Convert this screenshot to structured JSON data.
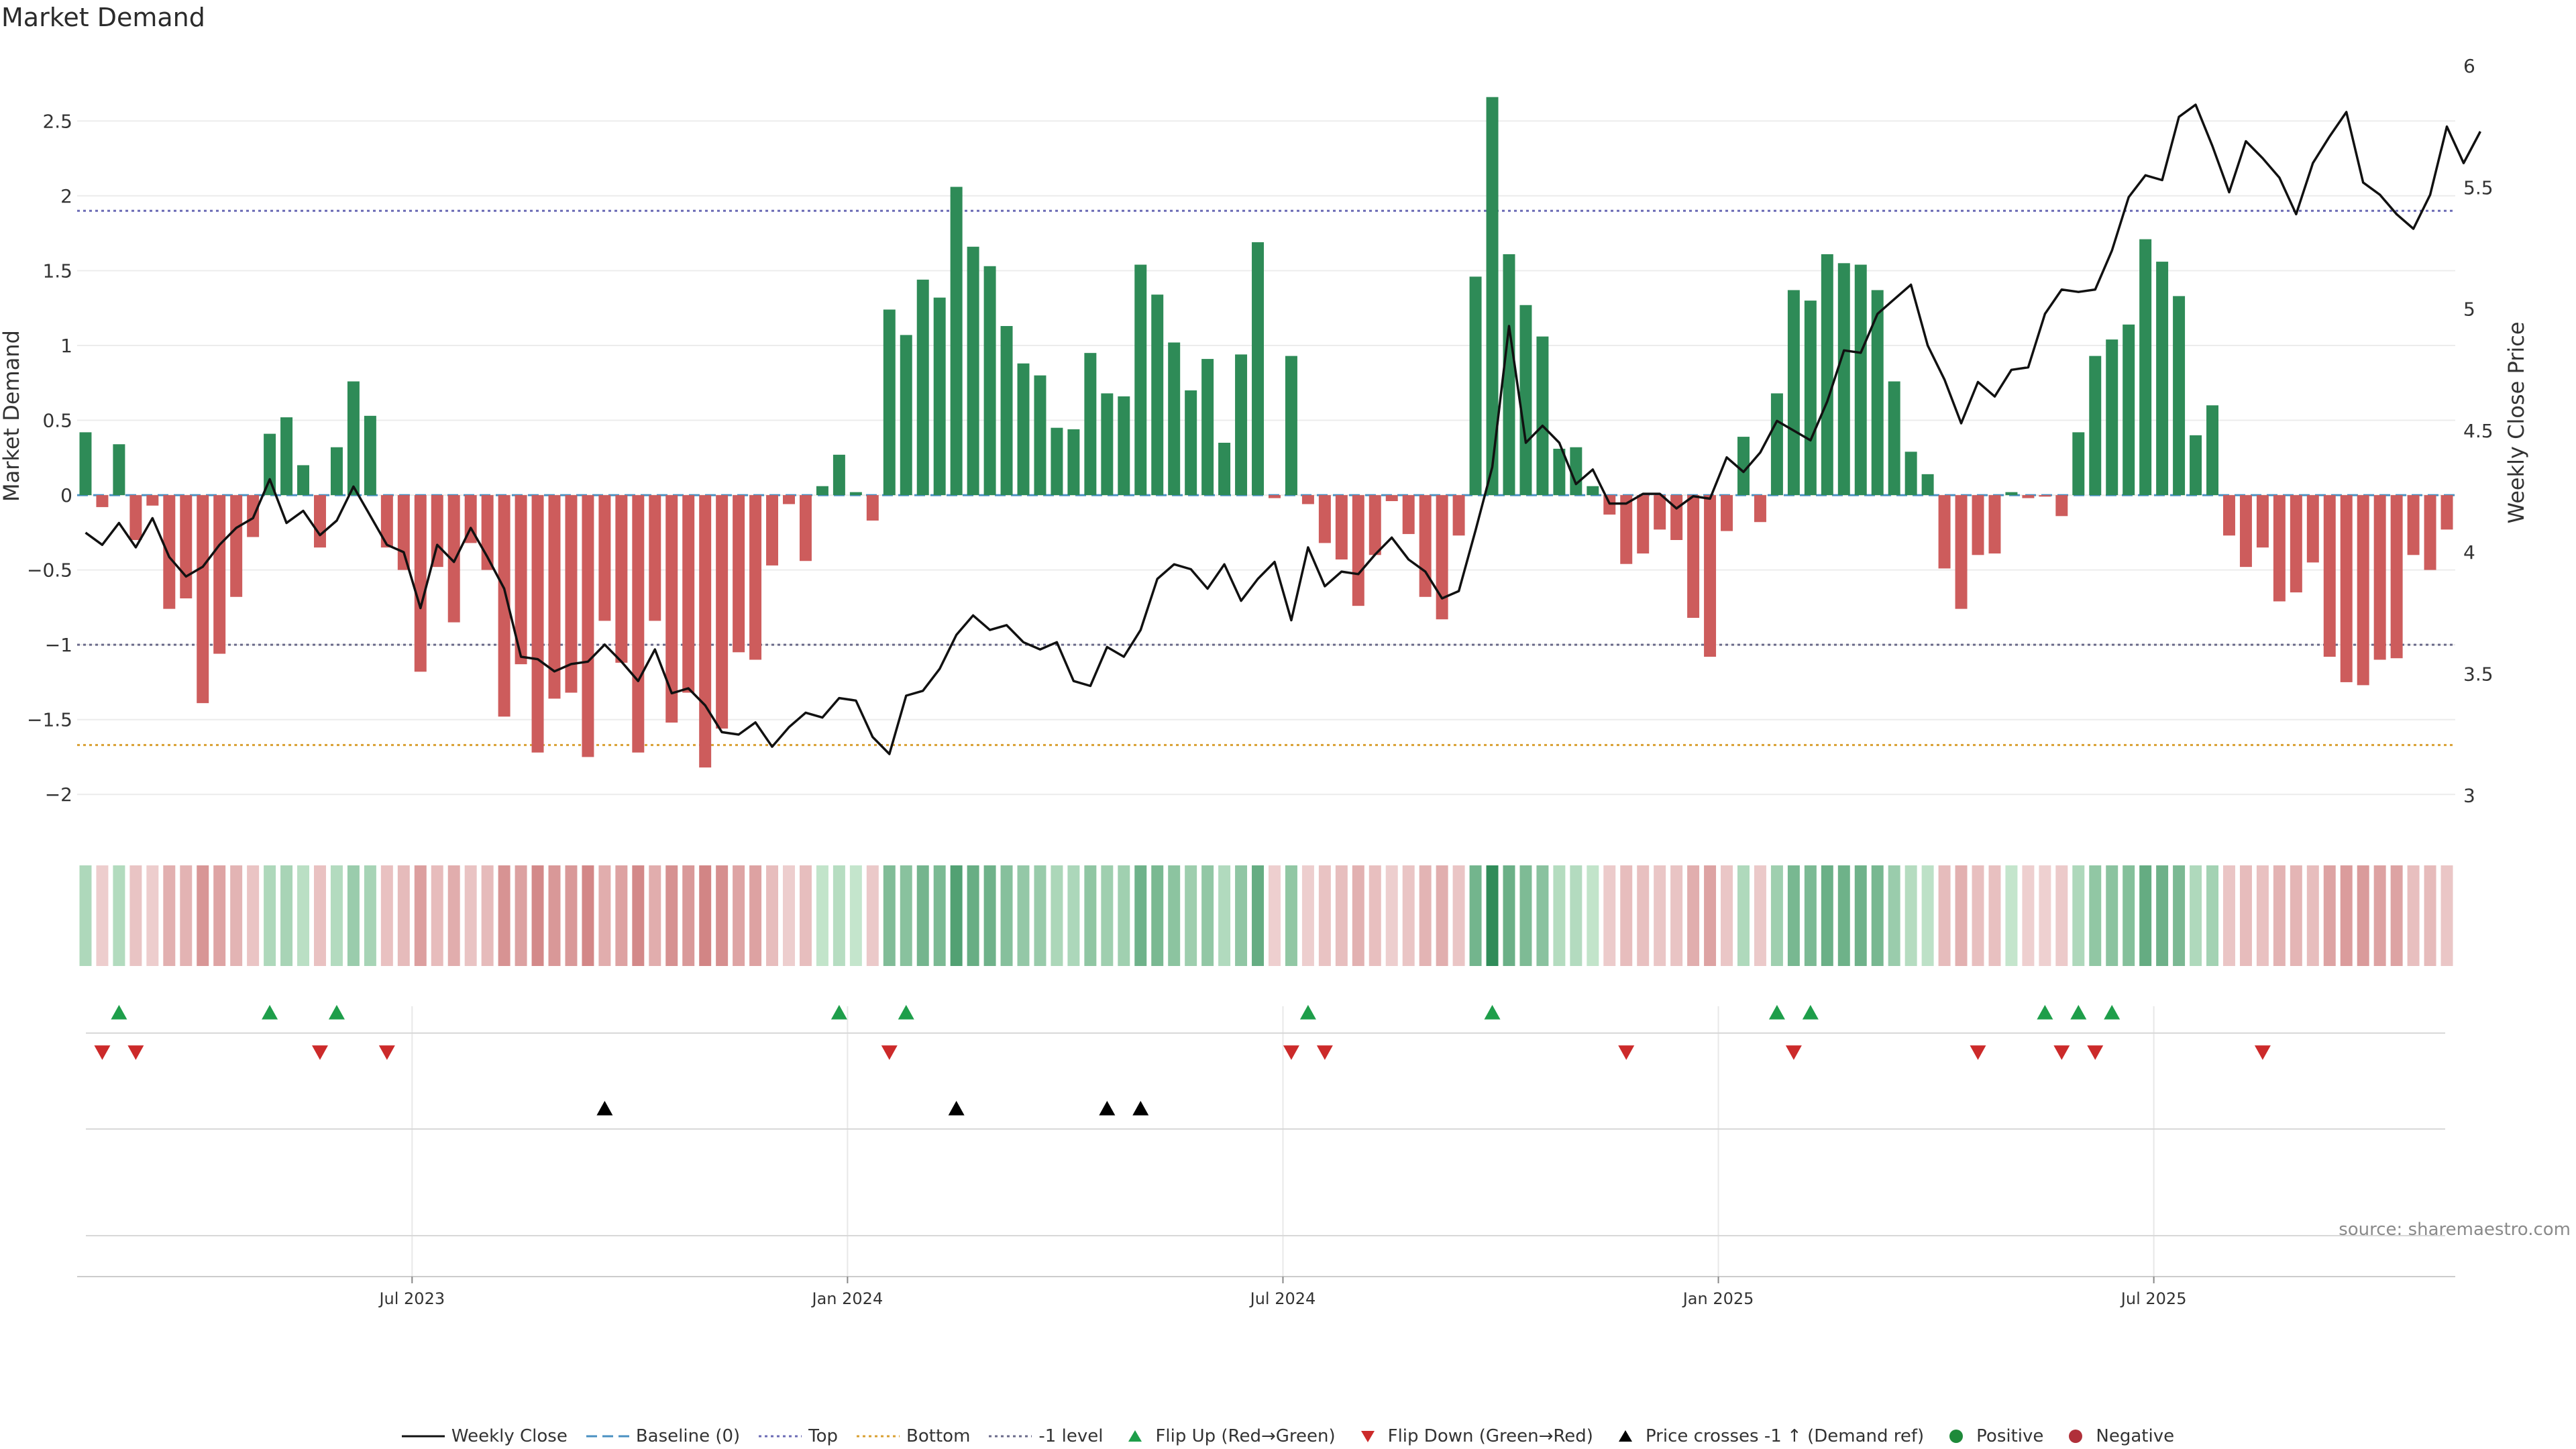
{
  "title": "Market Demand",
  "source": "source: sharemaestro.com",
  "colors": {
    "positive": "#2e8b57",
    "negative": "#cd5c5c",
    "price": "#111111",
    "baseline": "#4a90c2",
    "top": "#6b6bb5",
    "bottom": "#d9a032",
    "minus1": "#6a6a8a",
    "flip_up": "#1e9e4a",
    "flip_down": "#cc2a2a",
    "cross": "#000000",
    "dot_pos": "#1e8a3a",
    "dot_neg": "#b0303a"
  },
  "chart_data": {
    "type": "bar",
    "title": "Market Demand",
    "ylabel": "Market Demand",
    "y2label": "Weekly Close Price",
    "ylim": [
      -2.25,
      2.95
    ],
    "y2lim": [
      2.85,
      6.05
    ],
    "yticks": [
      "2.5",
      "2",
      "1.5",
      "1",
      "0.5",
      "0",
      "−0.5",
      "−1",
      "−1.5",
      "−2"
    ],
    "ytick_values": [
      2.5,
      2,
      1.5,
      1,
      0.5,
      0,
      -0.5,
      -1,
      -1.5,
      -2
    ],
    "y2ticks": [
      "6",
      "5.5",
      "5",
      "4.5",
      "4",
      "3.5",
      "3"
    ],
    "y2tick_values": [
      6,
      5.5,
      5,
      4.5,
      4,
      3.5,
      3
    ],
    "x_labels": [
      {
        "label": "Jul 2023",
        "week": 20
      },
      {
        "label": "Jan 2024",
        "week": 46
      },
      {
        "label": "Jul 2024",
        "week": 72
      },
      {
        "label": "Jan 2025",
        "week": 98
      },
      {
        "label": "Jul 2025",
        "week": 124
      }
    ],
    "levels": {
      "top": 1.9,
      "bottom": -1.67,
      "minus1": -1.0,
      "baseline": 0
    },
    "demand": [
      0.42,
      -0.08,
      0.34,
      -0.3,
      -0.07,
      -0.76,
      -0.69,
      -1.39,
      -1.06,
      -0.68,
      -0.28,
      0.41,
      0.52,
      0.2,
      -0.35,
      0.32,
      0.76,
      0.53,
      -0.35,
      -0.5,
      -1.18,
      -0.48,
      -0.85,
      -0.32,
      -0.5,
      -1.48,
      -1.13,
      -1.72,
      -1.36,
      -1.32,
      -1.75,
      -0.84,
      -1.12,
      -1.72,
      -0.84,
      -1.52,
      -1.32,
      -1.82,
      -1.56,
      -1.05,
      -1.1,
      -0.47,
      -0.06,
      -0.44,
      0.06,
      0.27,
      0.02,
      -0.17,
      1.24,
      1.07,
      1.44,
      1.32,
      2.06,
      1.66,
      1.53,
      1.13,
      0.88,
      0.8,
      0.45,
      0.44,
      0.95,
      0.68,
      0.66,
      1.54,
      1.34,
      1.02,
      0.7,
      0.91,
      0.35,
      0.94,
      1.69,
      -0.02,
      0.93,
      -0.06,
      -0.32,
      -0.43,
      -0.74,
      -0.4,
      -0.04,
      -0.26,
      -0.68,
      -0.83,
      -0.27,
      1.46,
      2.66,
      1.61,
      1.27,
      1.06,
      0.31,
      0.32,
      0.06,
      -0.13,
      -0.46,
      -0.39,
      -0.23,
      -0.3,
      -0.82,
      -1.08,
      -0.24,
      0.39,
      -0.18,
      0.68,
      1.37,
      1.3,
      1.61,
      1.55,
      1.54,
      1.37,
      0.76,
      0.29,
      0.14,
      -0.49,
      -0.76,
      -0.4,
      -0.39,
      0.02,
      -0.02,
      -0.01,
      -0.14,
      0.42,
      0.93,
      1.04,
      1.14,
      1.71,
      1.56,
      1.33,
      0.4,
      0.6,
      -0.27,
      -0.48,
      -0.35,
      -0.71,
      -0.65,
      -0.45,
      -1.08,
      -1.25,
      -1.27,
      -1.1,
      -1.09,
      -0.4,
      -0.5,
      -0.23
    ],
    "price": [
      4.08,
      4.03,
      4.12,
      4.02,
      4.14,
      3.98,
      3.9,
      3.94,
      4.03,
      4.1,
      4.14,
      4.3,
      4.12,
      4.17,
      4.07,
      4.13,
      4.27,
      4.15,
      4.03,
      4.0,
      3.77,
      4.03,
      3.96,
      4.1,
      3.98,
      3.85,
      3.57,
      3.56,
      3.51,
      3.54,
      3.55,
      3.62,
      3.55,
      3.47,
      3.6,
      3.42,
      3.44,
      3.37,
      3.26,
      3.25,
      3.3,
      3.2,
      3.28,
      3.34,
      3.32,
      3.4,
      3.39,
      3.24,
      3.17,
      3.41,
      3.43,
      3.52,
      3.66,
      3.74,
      3.68,
      3.7,
      3.63,
      3.6,
      3.63,
      3.47,
      3.45,
      3.61,
      3.57,
      3.68,
      3.89,
      3.95,
      3.93,
      3.85,
      3.95,
      3.8,
      3.89,
      3.96,
      3.72,
      4.02,
      3.86,
      3.92,
      3.91,
      3.99,
      4.06,
      3.97,
      3.92,
      3.81,
      3.84,
      4.09,
      4.35,
      4.93,
      4.45,
      4.52,
      4.45,
      4.28,
      4.34,
      4.2,
      4.2,
      4.24,
      4.24,
      4.18,
      4.23,
      4.22,
      4.39,
      4.33,
      4.41,
      4.54,
      4.5,
      4.46,
      4.62,
      4.83,
      4.82,
      4.98,
      5.04,
      5.1,
      4.85,
      4.71,
      4.53,
      4.7,
      4.64,
      4.75,
      4.76,
      4.98,
      5.08,
      5.07,
      5.08,
      5.24,
      5.46,
      5.55,
      5.53,
      5.79,
      5.84,
      5.67,
      5.48,
      5.69,
      5.62,
      5.54,
      5.39,
      5.6,
      5.71,
      5.81,
      5.52,
      5.47,
      5.39,
      5.33,
      5.47,
      5.75,
      5.6,
      5.73
    ],
    "flip_up_weeks": [
      2,
      11,
      15,
      45,
      49,
      73,
      84,
      101,
      103,
      117,
      119,
      121
    ],
    "flip_down_weeks": [
      1,
      3,
      14,
      18,
      48,
      72,
      74,
      92,
      102,
      113,
      118,
      120,
      130
    ],
    "cross_weeks": [
      31,
      52,
      61,
      63
    ],
    "series_names": [
      "Weekly Close",
      "Baseline (0)",
      "Top",
      "Bottom",
      "-1 level",
      "Flip Up (Red→Green)",
      "Flip Down (Green→Red)",
      "Price crosses -1 ↑ (Demand ref)",
      "Positive",
      "Negative"
    ]
  },
  "legend": {
    "weekly_close": "Weekly Close",
    "baseline": "Baseline (0)",
    "top": "Top",
    "bottom": "Bottom",
    "minus1": "-1 level",
    "flip_up": "Flip Up (Red→Green)",
    "flip_down": "Flip Down (Green→Red)",
    "cross": "Price crosses -1 ↑ (Demand ref)",
    "positive": "Positive",
    "negative": "Negative"
  }
}
